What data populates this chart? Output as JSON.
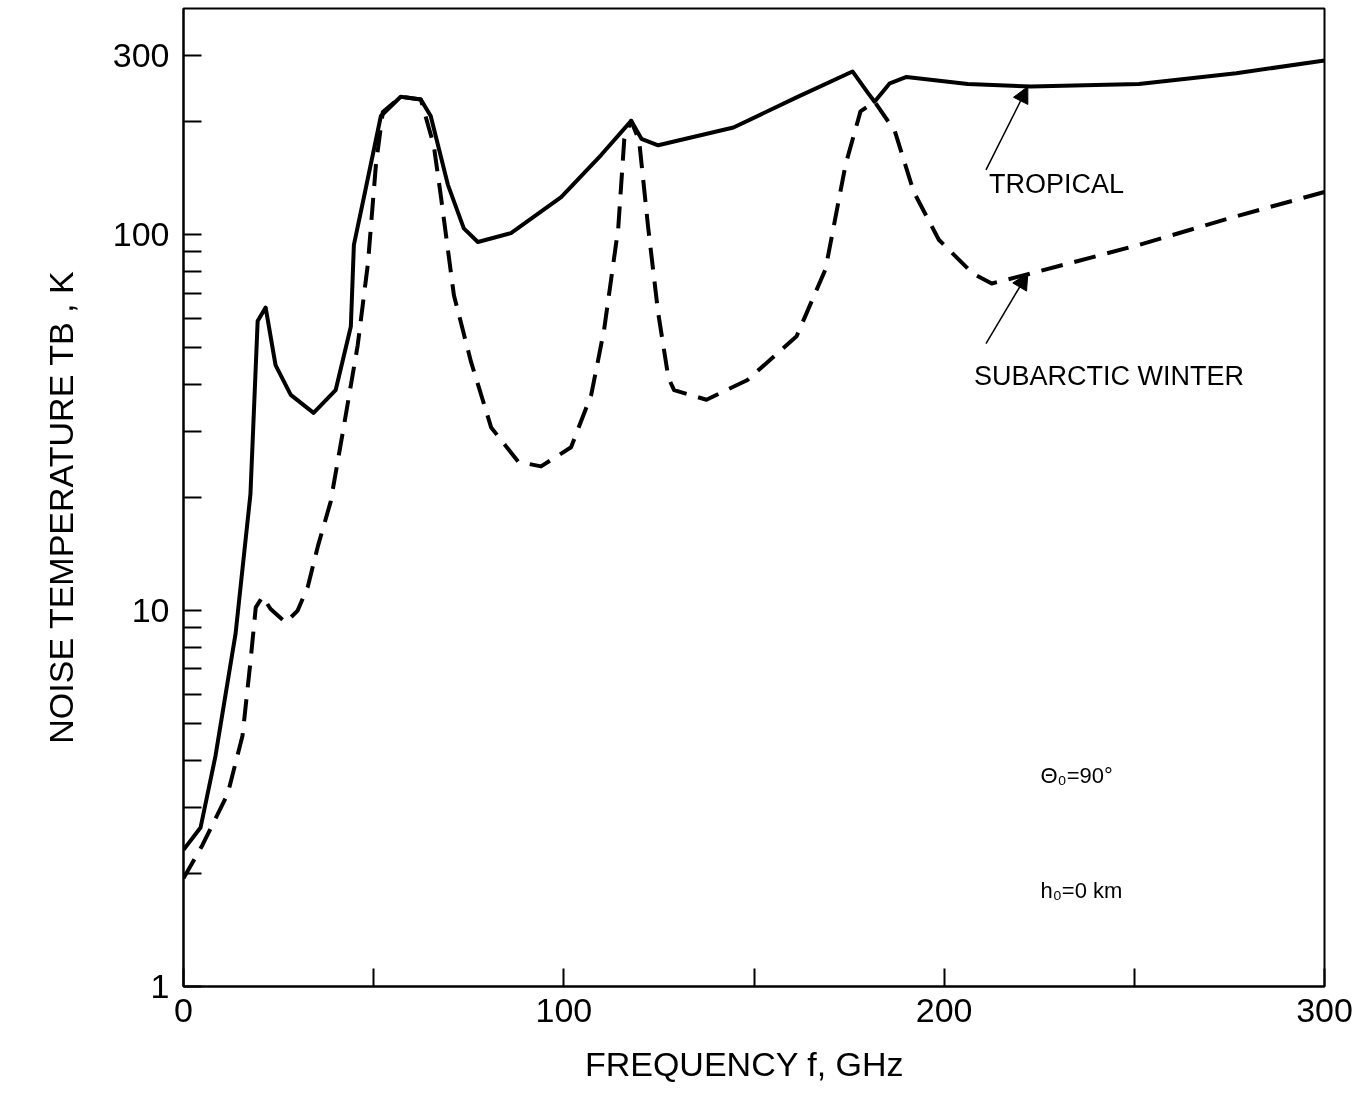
{
  "chart_data": {
    "type": "line",
    "xlabel": "FREQUENCY  f,  GHz",
    "ylabel": "NOISE  TEMPERATURE  TB , K",
    "log": "y",
    "grid": false,
    "marker": "none",
    "xlim": [
      0,
      300
    ],
    "xticks": [
      0,
      100,
      200,
      300
    ],
    "ylim": [
      1,
      400
    ],
    "yticks": [
      1,
      10,
      100,
      300
    ],
    "series": [
      {
        "color": "#000000",
        "line_style": "solid",
        "x": [
          0,
          4.5,
          8.4,
          13.7,
          17.6,
          19.5,
          21.6,
          24.2,
          28.2,
          34.2,
          40,
          44,
          44.8,
          48,
          51.9,
          57.1,
          62.4,
          65,
          69.5,
          73.7,
          77.4,
          86.1,
          99.3,
          109.8,
          117.7,
          120.4,
          124.8,
          144.6,
          161.2,
          175.9,
          179.9,
          181.7,
          185.7,
          190.1,
          206.2,
          222.8,
          251.2,
          276.8,
          300
        ],
        "values": [
          2.31,
          2.65,
          4.1,
          8.7,
          20.4,
          59,
          64,
          45,
          37.5,
          33.6,
          38.6,
          57,
          94,
          134,
          207,
          233,
          229,
          207,
          136,
          104,
          95.7,
          101,
          126,
          163,
          201,
          180,
          173,
          193,
          232,
          272,
          239,
          226,
          253,
          263,
          252,
          248,
          252,
          269,
          291
        ]
      },
      {
        "color": "#000000",
        "line_style": "dashed",
        "x": [
          0,
          5,
          11.6,
          15.5,
          17.6,
          19,
          20.8,
          22.9,
          26.9,
          30,
          32.7,
          35.3,
          38.7,
          42.1,
          45.8,
          48.5,
          50.6,
          52.4,
          57.1,
          62.4,
          65.8,
          67.7,
          71.1,
          75.6,
          80.9,
          88,
          94,
          101.9,
          107.2,
          110.6,
          114.3,
          115.9,
          117.7,
          119.8,
          122.2,
          124.8,
          127.5,
          129,
          137.5,
          148.3,
          161.2,
          168.8,
          174.1,
          178,
          181.7,
          187,
          192,
          198.6,
          207.5,
          212.5,
          222.8,
          251.2,
          276.8,
          300
        ],
        "values": [
          1.94,
          2.38,
          3.25,
          4.64,
          7.3,
          10.2,
          10.9,
          10.1,
          9.3,
          10.0,
          11.6,
          14.8,
          19.5,
          30.7,
          50.8,
          84,
          154,
          212,
          233,
          229,
          173,
          126,
          69,
          45.9,
          30.7,
          24.9,
          24.2,
          27.2,
          37.5,
          56,
          104,
          180,
          201,
          178,
          104,
          62,
          41.6,
          38.6,
          36.4,
          41.1,
          53.7,
          81,
          154,
          213,
          226,
          189,
          130,
          97,
          78.9,
          74.2,
          78.9,
          94,
          112,
          130
        ]
      }
    ],
    "annotations": [
      {
        "text": "TROPICAL",
        "x": 222,
        "y": 248
      },
      {
        "text": "SUBARCTIC WINTER",
        "x": 222,
        "y": 79
      },
      "Θ₀=90°",
      "h₀=0 km"
    ]
  }
}
